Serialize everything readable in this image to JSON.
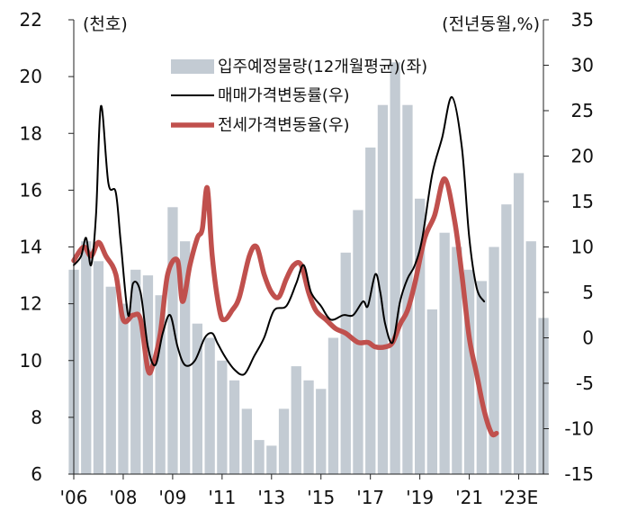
{
  "chart_data": {
    "type": "bar",
    "left_unit": "(천호)",
    "right_unit": "(전년동월,%)",
    "left_axis": {
      "ylim": [
        6,
        22
      ],
      "ticks": [
        "6",
        "8",
        "10",
        "12",
        "14",
        "16",
        "18",
        "20",
        "22"
      ]
    },
    "right_axis": {
      "ylim": [
        -15,
        35
      ],
      "ticks": [
        "-15",
        "-10",
        "-5",
        "0",
        "5",
        "10",
        "15",
        "20",
        "25",
        "30",
        "35"
      ]
    },
    "x_ticks": [
      "'06",
      "'08",
      "'09",
      "'11",
      "'13",
      "'15",
      "'17",
      "'19",
      "'21",
      "'23E"
    ],
    "x_range": [
      2006.0,
      2025.0
    ],
    "grid": false,
    "legend_position": "top-center",
    "colors": {
      "bars": "#c3cbd3",
      "sale": "#000000",
      "jeonse": "#c0504d"
    },
    "series": [
      {
        "name": "입주예정물량(12개월평균)(좌)",
        "axis": "left",
        "style": "bar",
        "x": [
          2006.0,
          2006.5,
          2007.0,
          2007.5,
          2008.0,
          2008.5,
          2009.0,
          2009.5,
          2010.0,
          2010.5,
          2011.0,
          2011.5,
          2012.0,
          2012.5,
          2013.0,
          2013.5,
          2014.0,
          2014.5,
          2015.0,
          2015.5,
          2016.0,
          2016.5,
          2017.0,
          2017.5,
          2018.0,
          2018.5,
          2019.0,
          2019.5,
          2020.0,
          2020.5,
          2021.0,
          2021.5,
          2022.0,
          2022.5,
          2023.0,
          2023.5,
          2024.0,
          2024.5,
          2025.0
        ],
        "values": [
          13.2,
          14.2,
          13.5,
          12.6,
          12.0,
          13.2,
          13.0,
          12.3,
          15.4,
          14.2,
          11.3,
          10.8,
          10.0,
          9.3,
          8.3,
          7.2,
          7.0,
          8.3,
          9.8,
          9.3,
          9.0,
          10.8,
          13.8,
          15.3,
          17.5,
          19.0,
          20.5,
          19.0,
          15.7,
          11.8,
          14.5,
          14.0,
          13.2,
          12.8,
          14.0,
          15.5,
          16.6,
          14.2,
          11.5
        ]
      },
      {
        "name": "매매가격변동률(우)",
        "axis": "right",
        "style": "line",
        "x": [
          2006.0,
          2006.3,
          2006.5,
          2006.7,
          2006.9,
          2007.1,
          2007.4,
          2007.7,
          2007.9,
          2008.2,
          2008.4,
          2008.7,
          2009.0,
          2009.3,
          2009.6,
          2009.9,
          2010.2,
          2010.5,
          2010.9,
          2011.3,
          2011.6,
          2011.8,
          2012.1,
          2012.5,
          2012.9,
          2013.3,
          2013.7,
          2014.1,
          2014.6,
          2015.0,
          2015.3,
          2015.6,
          2016.0,
          2016.4,
          2016.9,
          2017.3,
          2017.7,
          2017.9,
          2018.2,
          2018.4,
          2018.6,
          2018.9,
          2019.2,
          2019.5,
          2019.8,
          2020.1,
          2020.5,
          2020.9,
          2021.3,
          2021.7,
          2022.0,
          2022.3,
          2022.6
        ],
        "values": [
          8.0,
          9.0,
          11.0,
          8.0,
          13.5,
          25.5,
          17.0,
          16.0,
          10.5,
          2.5,
          6.0,
          5.0,
          -1.0,
          -3.0,
          0.5,
          2.5,
          -1.0,
          -3.0,
          -2.5,
          0.0,
          0.5,
          -0.5,
          -2.0,
          -3.5,
          -4.0,
          -2.0,
          0.0,
          3.0,
          3.5,
          6.0,
          8.0,
          5.0,
          3.5,
          2.0,
          2.5,
          2.5,
          4.0,
          3.5,
          7.0,
          5.0,
          1.5,
          -0.5,
          4.0,
          6.5,
          8.0,
          11.0,
          18.0,
          22.0,
          26.5,
          21.0,
          11.0,
          5.5,
          4.0
        ]
      },
      {
        "name": "전세가격변동율(우)",
        "axis": "right",
        "style": "line",
        "x": [
          2006.0,
          2006.4,
          2006.7,
          2007.0,
          2007.3,
          2007.7,
          2008.0,
          2008.4,
          2008.7,
          2009.0,
          2009.2,
          2009.5,
          2009.8,
          2010.2,
          2010.4,
          2010.7,
          2011.0,
          2011.2,
          2011.4,
          2011.6,
          2011.9,
          2012.1,
          2012.4,
          2012.7,
          2013.1,
          2013.4,
          2013.7,
          2014.0,
          2014.3,
          2014.6,
          2014.9,
          2015.2,
          2015.5,
          2015.8,
          2016.2,
          2016.6,
          2017.0,
          2017.5,
          2017.9,
          2018.2,
          2018.6,
          2018.9,
          2019.2,
          2019.5,
          2019.8,
          2020.2,
          2020.6,
          2021.0,
          2021.4,
          2021.7,
          2022.0,
          2022.3,
          2022.6,
          2022.9,
          2023.1
        ],
        "values": [
          8.5,
          10.0,
          9.0,
          10.5,
          9.0,
          7.0,
          2.0,
          2.5,
          2.0,
          -3.5,
          -3.0,
          0.5,
          7.0,
          8.5,
          4.0,
          8.0,
          11.0,
          12.0,
          16.5,
          9.0,
          3.0,
          2.0,
          3.0,
          4.5,
          9.0,
          10.0,
          7.0,
          5.0,
          4.5,
          6.5,
          8.0,
          8.0,
          5.0,
          3.0,
          2.0,
          1.0,
          0.5,
          -0.5,
          -0.5,
          -1.0,
          -1.0,
          -0.5,
          1.5,
          3.0,
          6.0,
          11.0,
          13.5,
          17.5,
          13.0,
          7.0,
          0.0,
          -4.0,
          -8.0,
          -10.5,
          -10.5
        ]
      }
    ]
  }
}
